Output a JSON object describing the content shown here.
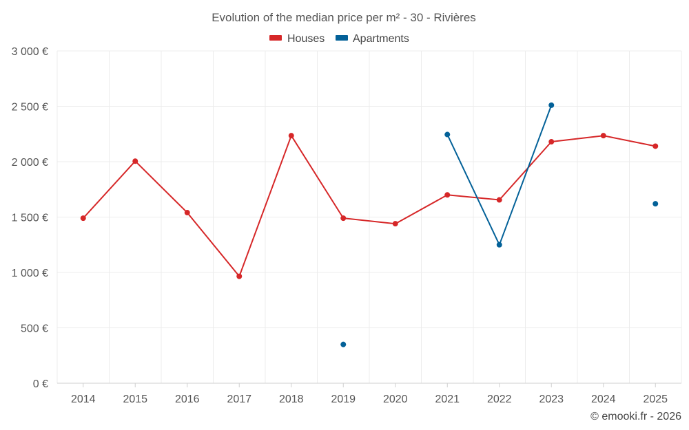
{
  "chart_data": {
    "type": "line",
    "title": "Evolution of the median price per m² - 30 - Rivières",
    "categories": [
      "2014",
      "2015",
      "2016",
      "2017",
      "2018",
      "2019",
      "2020",
      "2021",
      "2022",
      "2023",
      "2024",
      "2025"
    ],
    "y_ticks": [
      "0 €",
      "500 €",
      "1 000 €",
      "1 500 €",
      "2 000 €",
      "2 500 €",
      "3 000 €"
    ],
    "ylim": [
      0,
      3000
    ],
    "y_tick_values": [
      0,
      500,
      1000,
      1500,
      2000,
      2500,
      3000
    ],
    "grid": true,
    "legend_position": "top-center",
    "series": [
      {
        "name": "Houses",
        "color": "#d62728",
        "values": [
          1490,
          2005,
          1540,
          965,
          2235,
          1490,
          1440,
          1700,
          1655,
          2180,
          2235,
          2140
        ]
      },
      {
        "name": "Apartments",
        "color": "#036198",
        "values": [
          null,
          null,
          null,
          null,
          null,
          350,
          null,
          2245,
          1250,
          2510,
          null,
          1620
        ]
      }
    ],
    "credit": "© emooki.fr - 2026"
  }
}
